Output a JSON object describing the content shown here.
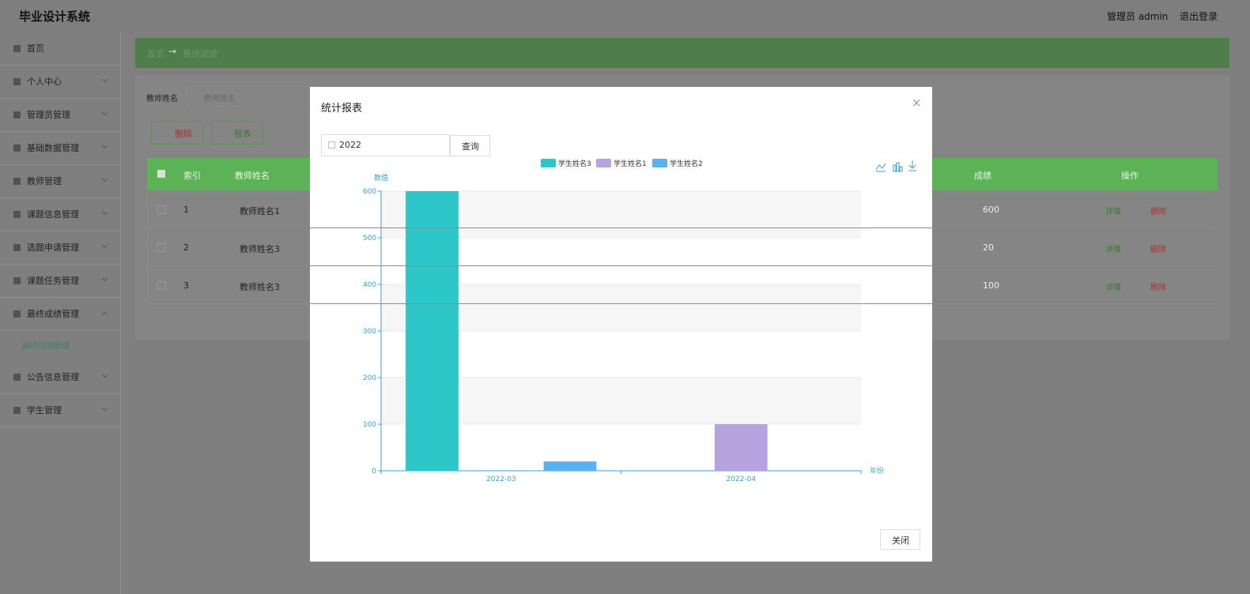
{
  "header": {
    "title": "毕业设计系统",
    "user": "管理员 admin",
    "logout": "退出登录"
  },
  "sidebar": {
    "items": [
      "首页",
      "个人中心",
      "管理员管理",
      "基础数据管理",
      "教师管理",
      "课题信息管理",
      "选题申请管理",
      "课题任务管理",
      "最终成绩管理",
      "公告信息管理",
      "学生管理"
    ],
    "subitem": "最终成绩管理"
  },
  "breadcrumb": {
    "home": "首页",
    "arrow": "→",
    "current": "最终成绩"
  },
  "search": {
    "label": "教师姓名",
    "placeholder": "教师姓名"
  },
  "buttons": {
    "delete": "删除",
    "report": "报表"
  },
  "table": {
    "headers": [
      "索引",
      "教师姓名",
      "成绩",
      "操作"
    ],
    "rows": [
      [
        1,
        "教师姓名1",
        600
      ],
      [
        2,
        "教师姓名3",
        20
      ],
      [
        3,
        "教师姓名3",
        100
      ]
    ],
    "actions": [
      "详情",
      "删除"
    ]
  },
  "modal": {
    "title": "统计报表",
    "close_x": "×",
    "year": "2022",
    "query": "查询",
    "close": "关闭"
  },
  "chart_data": {
    "type": "bar",
    "y_axis_label": "数值",
    "x_axis_label": "年份",
    "categories": [
      "2022-03",
      "2022-04"
    ],
    "series": [
      {
        "name": "学生姓名3",
        "color": "#2ec7c9",
        "values": [
          600,
          null
        ]
      },
      {
        "name": "学生姓名1",
        "color": "#b6a2de",
        "values": [
          null,
          100
        ]
      },
      {
        "name": "学生姓名2",
        "color": "#5ab1ef",
        "values": [
          20,
          null
        ]
      }
    ],
    "ylim": [
      0,
      600
    ],
    "yticks": [
      0,
      100,
      200,
      300,
      400,
      500,
      600
    ],
    "grid": true,
    "legend": "top"
  }
}
